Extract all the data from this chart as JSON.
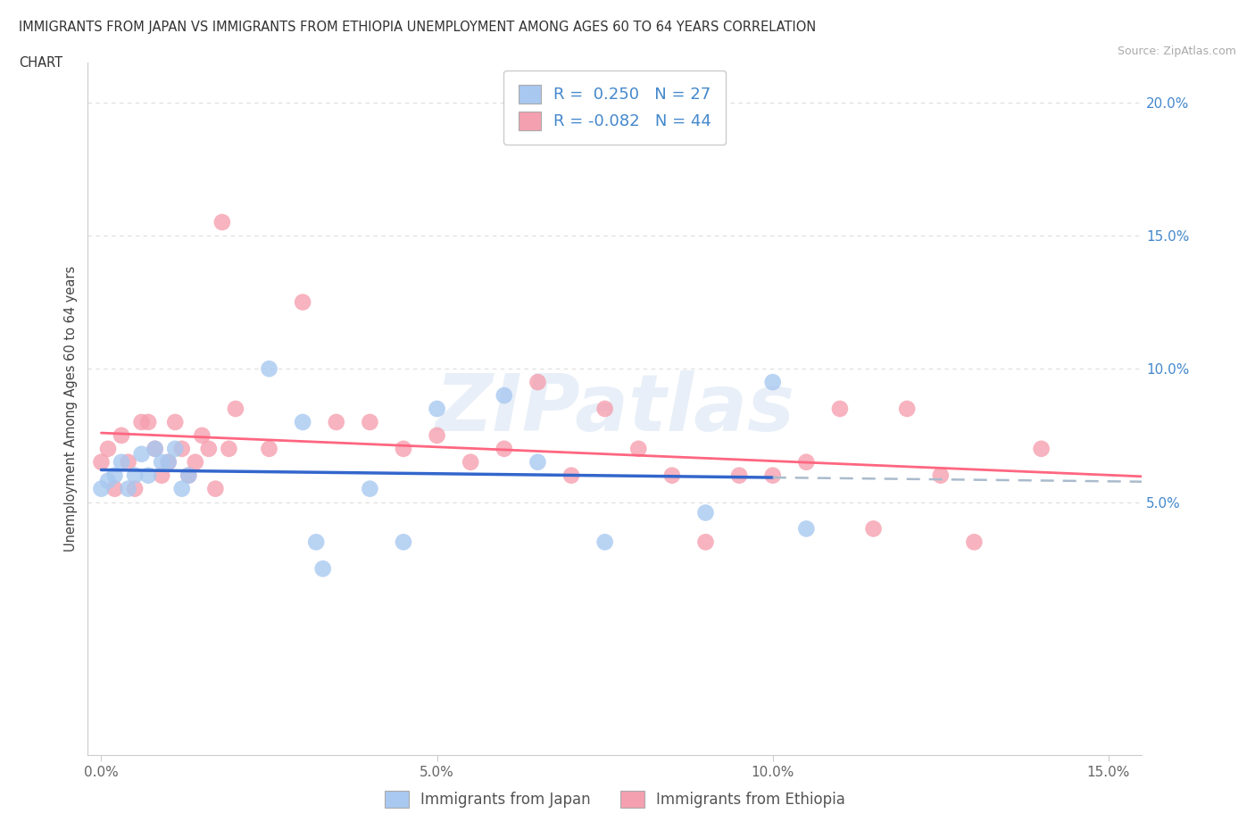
{
  "title_line1": "IMMIGRANTS FROM JAPAN VS IMMIGRANTS FROM ETHIOPIA UNEMPLOYMENT AMONG AGES 60 TO 64 YEARS CORRELATION",
  "title_line2": "CHART",
  "source": "Source: ZipAtlas.com",
  "ylabel": "Unemployment Among Ages 60 to 64 years",
  "xlim": [
    -0.002,
    0.155
  ],
  "ylim": [
    -0.045,
    0.215
  ],
  "xtick_vals": [
    0.0,
    0.05,
    0.1,
    0.15
  ],
  "xticklabels": [
    "0.0%",
    "5.0%",
    "10.0%",
    "15.0%"
  ],
  "ytick_vals": [
    0.05,
    0.1,
    0.15,
    0.2
  ],
  "yticklabels": [
    "5.0%",
    "10.0%",
    "15.0%",
    "20.0%"
  ],
  "japan_color": "#a8c8f0",
  "ethiopia_color": "#f5a0b0",
  "japan_R": 0.25,
  "japan_N": 27,
  "ethiopia_R": -0.082,
  "ethiopia_N": 44,
  "japan_x": [
    0.0,
    0.001,
    0.002,
    0.003,
    0.004,
    0.005,
    0.006,
    0.007,
    0.008,
    0.009,
    0.01,
    0.011,
    0.012,
    0.013,
    0.025,
    0.03,
    0.032,
    0.033,
    0.04,
    0.045,
    0.05,
    0.06,
    0.065,
    0.075,
    0.09,
    0.1,
    0.105
  ],
  "japan_y": [
    0.055,
    0.058,
    0.06,
    0.065,
    0.055,
    0.06,
    0.068,
    0.06,
    0.07,
    0.065,
    0.065,
    0.07,
    0.055,
    0.06,
    0.1,
    0.08,
    0.035,
    0.025,
    0.055,
    0.035,
    0.085,
    0.09,
    0.065,
    0.035,
    0.046,
    0.095,
    0.04
  ],
  "ethiopia_x": [
    0.0,
    0.001,
    0.002,
    0.003,
    0.004,
    0.005,
    0.006,
    0.007,
    0.008,
    0.009,
    0.01,
    0.011,
    0.012,
    0.013,
    0.014,
    0.015,
    0.016,
    0.017,
    0.018,
    0.019,
    0.02,
    0.025,
    0.03,
    0.035,
    0.04,
    0.045,
    0.05,
    0.055,
    0.06,
    0.065,
    0.07,
    0.075,
    0.08,
    0.085,
    0.09,
    0.095,
    0.1,
    0.105,
    0.11,
    0.115,
    0.12,
    0.125,
    0.13,
    0.14
  ],
  "ethiopia_y": [
    0.065,
    0.07,
    0.055,
    0.075,
    0.065,
    0.055,
    0.08,
    0.08,
    0.07,
    0.06,
    0.065,
    0.08,
    0.07,
    0.06,
    0.065,
    0.075,
    0.07,
    0.055,
    0.155,
    0.07,
    0.085,
    0.07,
    0.125,
    0.08,
    0.08,
    0.07,
    0.075,
    0.065,
    0.07,
    0.095,
    0.06,
    0.085,
    0.07,
    0.06,
    0.035,
    0.06,
    0.06,
    0.065,
    0.085,
    0.04,
    0.085,
    0.06,
    0.035,
    0.07
  ],
  "watermark_text": "ZIPatlas",
  "trend_japan_color": "#3366cc",
  "trend_ethiopia_color": "#ff6680",
  "trend_dashed_color": "#aabbcc",
  "tick_color": "#4488cc",
  "grid_color": "#dddddd",
  "spine_color": "#cccccc"
}
